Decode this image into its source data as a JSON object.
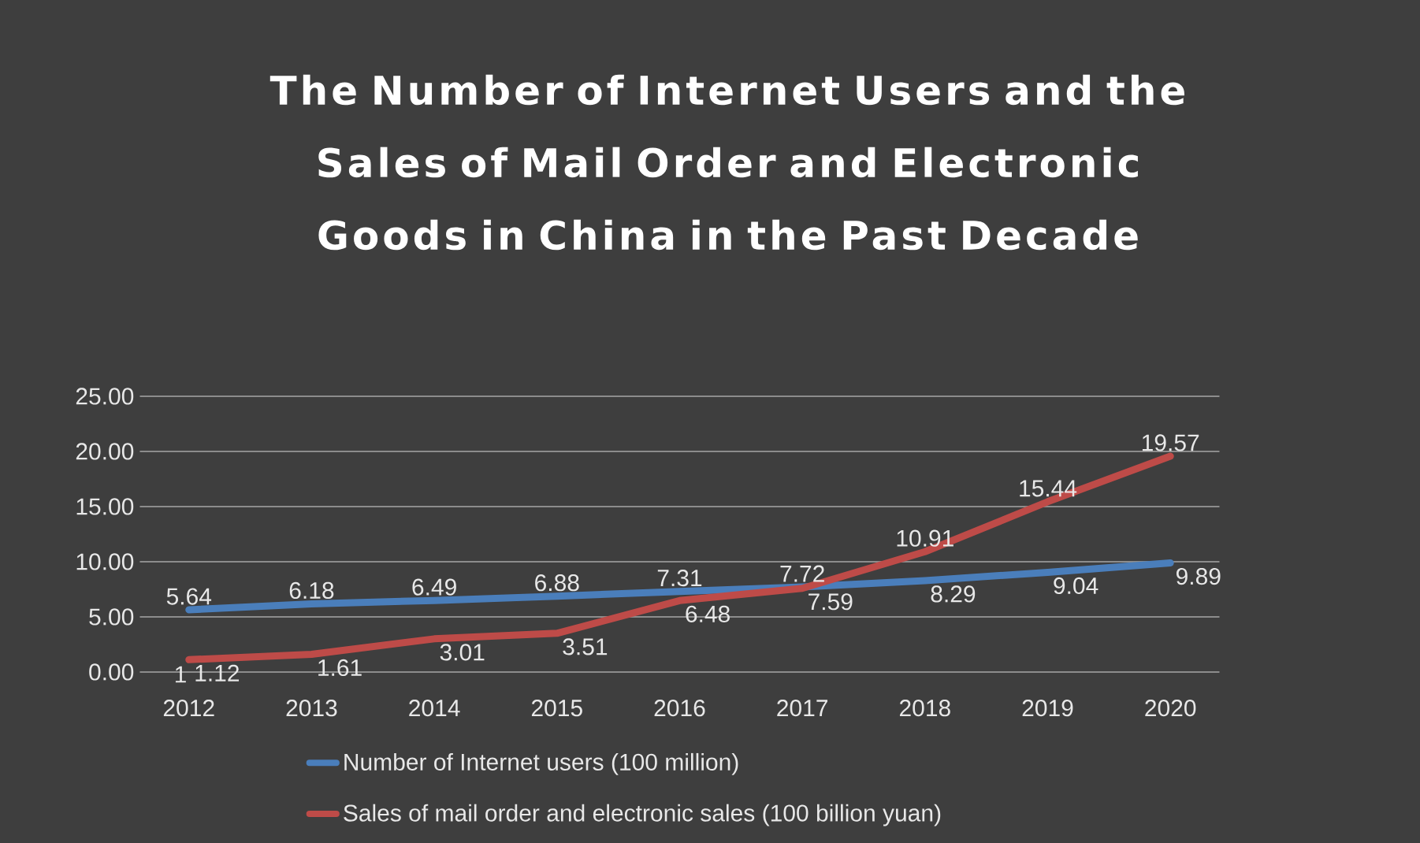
{
  "chart_data": {
    "type": "line",
    "title": "The Number of Internet Users and the Sales of Mail Order and Electronic Goods in China in the Past Decade",
    "categories": [
      "2012",
      "2013",
      "2014",
      "2015",
      "2016",
      "2017",
      "2018",
      "2019",
      "2020"
    ],
    "series": [
      {
        "name": "Number of Internet users (100 million)",
        "color": "#4a7ebb",
        "values": [
          5.64,
          6.18,
          6.49,
          6.88,
          7.31,
          7.72,
          8.29,
          9.04,
          9.89
        ]
      },
      {
        "name": "Sales of mail order and electronic sales (100 billion yuan)",
        "color": "#be4b48",
        "values": [
          1.12,
          1.61,
          3.01,
          3.51,
          6.48,
          7.59,
          10.91,
          15.44,
          19.57
        ]
      }
    ],
    "ylim": [
      0,
      25
    ],
    "yticks": [
      {
        "value": 0,
        "label": "0.00"
      },
      {
        "value": 5,
        "label": "5.00"
      },
      {
        "value": 10,
        "label": "10.00"
      },
      {
        "value": 15,
        "label": "15.00"
      },
      {
        "value": 20,
        "label": "20.00"
      },
      {
        "value": 25,
        "label": "25.00"
      }
    ],
    "annotations": [
      {
        "text": "1",
        "x": "2012",
        "y": 1.12
      }
    ],
    "data_labels": true,
    "grid": "y",
    "legend": "bottom",
    "marker": "none",
    "line_style": "solid"
  }
}
